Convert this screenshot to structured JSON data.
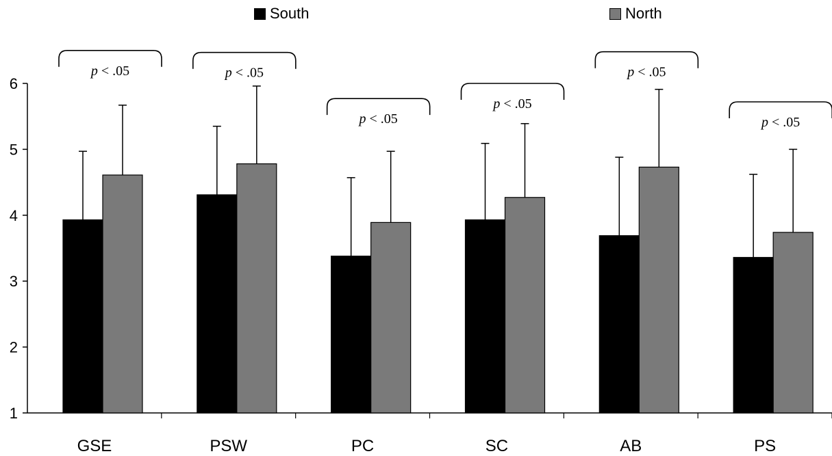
{
  "legend": {
    "south_label": "South",
    "north_label": "North"
  },
  "colors": {
    "south": "#000000",
    "north": "#7a7a7a"
  },
  "chart_data": {
    "type": "bar",
    "title": "",
    "xlabel": "",
    "ylabel": "",
    "ylim": [
      1,
      6
    ],
    "yticks": [
      1,
      2,
      3,
      4,
      5,
      6
    ],
    "grid": false,
    "legend_position": "top",
    "categories": [
      "GSE",
      "PSW",
      "PC",
      "SC",
      "AB",
      "PS"
    ],
    "series": [
      {
        "name": "South",
        "values": [
          3.93,
          4.31,
          3.38,
          3.93,
          3.69,
          3.36
        ],
        "error_upper": [
          4.97,
          5.35,
          4.57,
          5.09,
          4.88,
          4.62
        ]
      },
      {
        "name": "North",
        "values": [
          4.61,
          4.78,
          3.89,
          4.27,
          4.73,
          3.74
        ],
        "error_upper": [
          5.67,
          5.96,
          4.97,
          5.39,
          5.91,
          5.0
        ]
      }
    ],
    "annotations": [
      {
        "category": "GSE",
        "p_letter": "p",
        "p_rest": " < .05",
        "bracket_y": 6.5
      },
      {
        "category": "PSW",
        "p_letter": "p",
        "p_rest": " < .05",
        "bracket_y": 6.47
      },
      {
        "category": "PC",
        "p_letter": "p",
        "p_rest": " < .05",
        "bracket_y": 5.77
      },
      {
        "category": "SC",
        "p_letter": "p",
        "p_rest": " < .05",
        "bracket_y": 6.0
      },
      {
        "category": "AB",
        "p_letter": "p",
        "p_rest": " < .05",
        "bracket_y": 6.48
      },
      {
        "category": "PS",
        "p_letter": "p",
        "p_rest": " < .05",
        "bracket_y": 5.72
      }
    ]
  }
}
